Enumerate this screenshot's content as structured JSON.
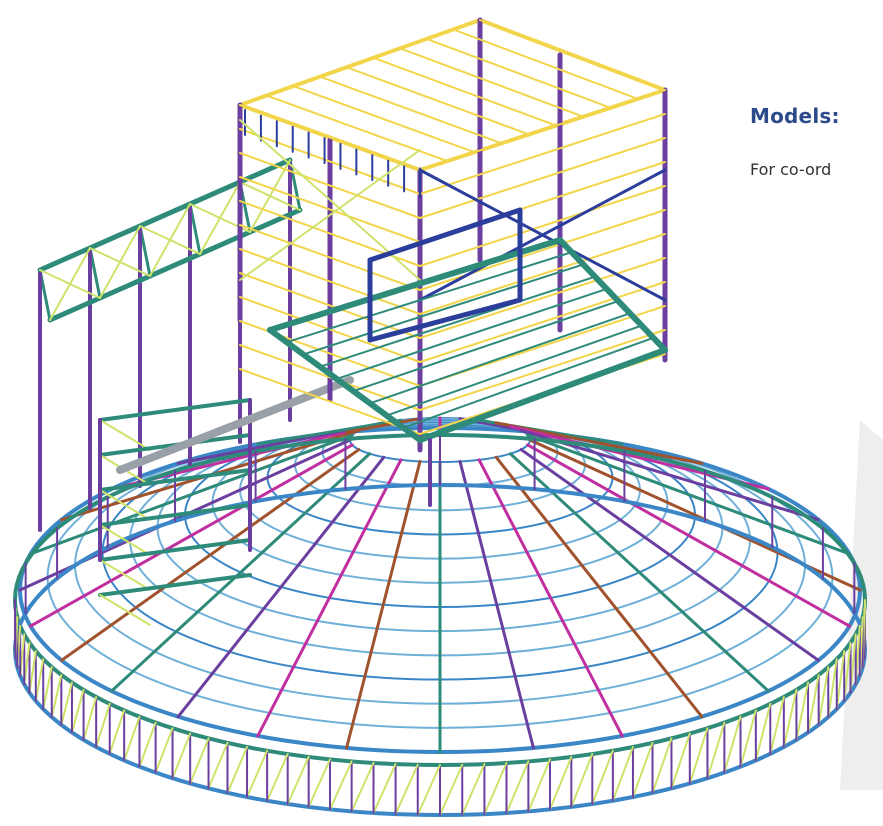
{
  "heading": "Models:",
  "body_text": "For co-ord",
  "colors": {
    "yellow": "#f2d54a",
    "purple": "#6b3fa0",
    "teal": "#2e8b7a",
    "lime": "#cde36a",
    "blue": "#3b86c6",
    "brown": "#a0522d",
    "magenta": "#c02fa0",
    "navy": "#2c3e9c",
    "heading": "#2d4a8a",
    "text": "#333333"
  },
  "icons": [
    "structural-3d-model",
    "watermark-shape"
  ]
}
